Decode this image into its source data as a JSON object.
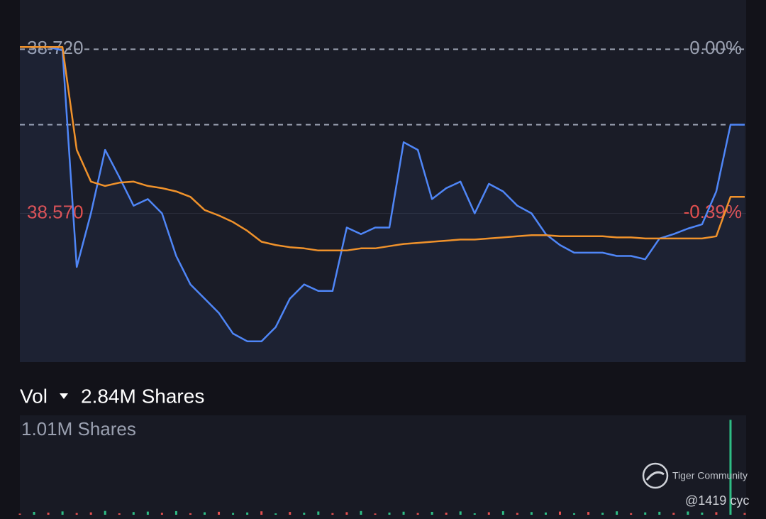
{
  "chart_data": [
    {
      "type": "line",
      "ylim": [
        38.434,
        38.765
      ],
      "yticks": [
        {
          "value": 38.72,
          "label": "38.720"
        },
        {
          "value": 38.57,
          "label": "38.570"
        }
      ],
      "y2lim": [
        -0.745,
        0.117
      ],
      "y2ticks": [
        {
          "value": 0,
          "label": "0.00%"
        },
        {
          "value": -0.39,
          "label": "-0.39%"
        }
      ],
      "hlines": [
        38.72,
        38.651
      ],
      "series": [
        {
          "name": "Price",
          "color": "#4f86f7",
          "values": [
            38.722,
            38.722,
            38.722,
            38.719,
            38.521,
            38.57,
            38.628,
            38.603,
            38.577,
            38.583,
            38.57,
            38.531,
            38.505,
            38.492,
            38.479,
            38.46,
            38.453,
            38.453,
            38.466,
            38.492,
            38.505,
            38.499,
            38.499,
            38.557,
            38.551,
            38.557,
            38.557,
            38.635,
            38.628,
            38.583,
            38.593,
            38.599,
            38.57,
            38.597,
            38.59,
            38.577,
            38.57,
            38.551,
            38.541,
            38.534,
            38.534,
            38.534,
            38.531,
            38.531,
            38.528,
            38.547,
            38.551,
            38.556,
            38.56,
            38.59,
            38.651,
            38.651
          ]
        },
        {
          "name": "Average",
          "color": "#f0922b",
          "values": [
            38.722,
            38.722,
            38.722,
            38.722,
            38.628,
            38.599,
            38.595,
            38.598,
            38.599,
            38.595,
            38.593,
            38.59,
            38.585,
            38.573,
            38.568,
            38.562,
            38.554,
            38.544,
            38.541,
            38.539,
            38.538,
            38.536,
            38.536,
            38.536,
            38.538,
            38.538,
            38.54,
            38.542,
            38.543,
            38.544,
            38.545,
            38.546,
            38.546,
            38.547,
            38.548,
            38.549,
            38.55,
            38.55,
            38.549,
            38.549,
            38.549,
            38.549,
            38.548,
            38.548,
            38.547,
            38.547,
            38.547,
            38.547,
            38.547,
            38.549,
            38.585,
            38.585
          ]
        }
      ]
    },
    {
      "type": "bar",
      "title": "Vol",
      "subtitle": "2.84M Shares",
      "ylim": [
        0,
        1010000
      ],
      "yticks": [
        {
          "value": 1010000,
          "label": "1.01M Shares"
        }
      ],
      "values": [
        12000,
        30000,
        22000,
        35000,
        18000,
        25000,
        40000,
        15000,
        28000,
        33000,
        20000,
        38000,
        16000,
        26000,
        31000,
        19000,
        24000,
        36000,
        14000,
        29000,
        21000,
        34000,
        17000,
        27000,
        39000,
        13000,
        23000,
        32000,
        18000,
        30000,
        22000,
        35000,
        15000,
        26000,
        37000,
        19000,
        28000,
        24000,
        33000,
        16000,
        29000,
        21000,
        36000,
        17000,
        25000,
        31000,
        20000,
        34000,
        23000,
        27000,
        1000000,
        18000
      ],
      "colors": [
        "#e2504f",
        "#2ebd85",
        "#e2504f",
        "#2ebd85",
        "#e2504f",
        "#e2504f",
        "#2ebd85",
        "#e2504f",
        "#2ebd85",
        "#2ebd85",
        "#e2504f",
        "#2ebd85",
        "#e2504f",
        "#2ebd85",
        "#e2504f",
        "#2ebd85",
        "#2ebd85",
        "#e2504f",
        "#2ebd85",
        "#e2504f",
        "#2ebd85",
        "#2ebd85",
        "#e2504f",
        "#e2504f",
        "#2ebd85",
        "#e2504f",
        "#2ebd85",
        "#2ebd85",
        "#e2504f",
        "#2ebd85",
        "#e2504f",
        "#2ebd85",
        "#2ebd85",
        "#e2504f",
        "#2ebd85",
        "#e2504f",
        "#2ebd85",
        "#2ebd85",
        "#e2504f",
        "#2ebd85",
        "#e2504f",
        "#2ebd85",
        "#2ebd85",
        "#e2504f",
        "#2ebd85",
        "#2ebd85",
        "#e2504f",
        "#2ebd85",
        "#2ebd85",
        "#e2504f",
        "#2ebd85",
        "#e2504f"
      ]
    }
  ],
  "watermark": {
    "brand": "Tiger Community",
    "user": "@1419 cyc"
  }
}
